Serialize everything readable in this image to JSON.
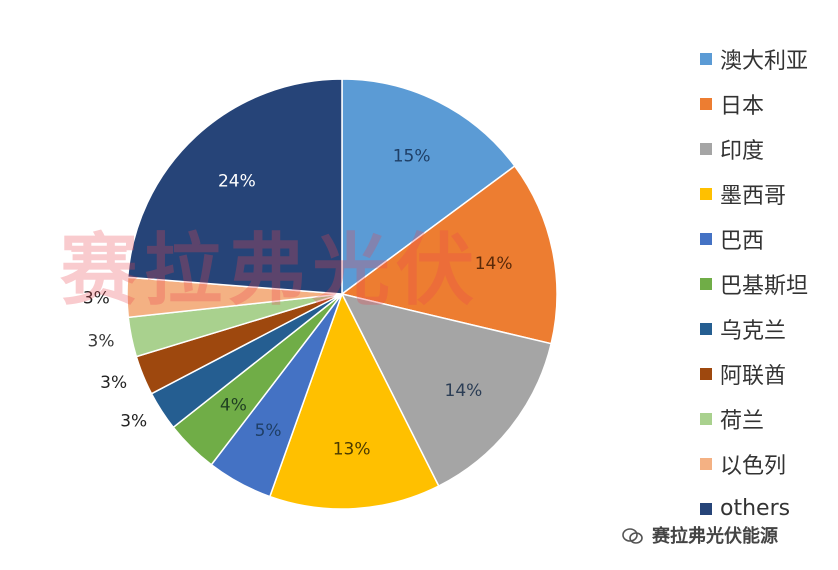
{
  "chart_data": {
    "type": "pie",
    "start_angle_deg": 0,
    "direction": "clockwise",
    "legend_position": "right",
    "slices": [
      {
        "name": "澳大利亚",
        "value": 15,
        "label": "15%",
        "color": "#5b9bd5",
        "label_color": "#1f3f66"
      },
      {
        "name": "日本",
        "value": 14,
        "label": "14%",
        "color": "#ed7d31",
        "label_color": "#5a2a0a"
      },
      {
        "name": "印度",
        "value": 14,
        "label": "14%",
        "color": "#a5a5a5",
        "label_color": "#2b3d55"
      },
      {
        "name": "墨西哥",
        "value": 13,
        "label": "13%",
        "color": "#ffc000",
        "label_color": "#4a3a00"
      },
      {
        "name": "巴西",
        "value": 5,
        "label": "5%",
        "color": "#4472c4",
        "label_color": "#1f3f66"
      },
      {
        "name": "巴基斯坦",
        "value": 4,
        "label": "4%",
        "color": "#70ad47",
        "label_color": "#1f3f22"
      },
      {
        "name": "乌克兰",
        "value": 3,
        "label": "3%",
        "color": "#255e91",
        "label_color": "#222222"
      },
      {
        "name": "阿联酋",
        "value": 3,
        "label": "3%",
        "color": "#9e480e",
        "label_color": "#222222"
      },
      {
        "name": "荷兰",
        "value": 3,
        "label": "3%",
        "color": "#a9d18e",
        "label_color": "#3a3a3a"
      },
      {
        "name": "以色列",
        "value": 3,
        "label": "3%",
        "color": "#f4b183",
        "label_color": "#222222"
      },
      {
        "name": "others",
        "value": 24,
        "label": "24%",
        "color": "#264478",
        "label_color": "#ffffff"
      }
    ]
  },
  "watermark": "赛拉弗光伏",
  "footer": {
    "brand": "赛拉弗光伏能源",
    "icon": "wechat-icon"
  }
}
